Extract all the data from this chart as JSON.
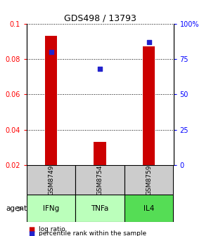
{
  "title": "GDS498 / 13793",
  "samples": [
    "GSM8749",
    "GSM8754",
    "GSM8759"
  ],
  "agents": [
    "IFNg",
    "TNFa",
    "IL4"
  ],
  "log_ratios": [
    0.093,
    0.033,
    0.087
  ],
  "percentile_ranks_pct": [
    80,
    68,
    87
  ],
  "ylim_left": [
    0.02,
    0.1
  ],
  "ylim_right": [
    0,
    100
  ],
  "yticks_left": [
    0.02,
    0.04,
    0.06,
    0.08,
    0.1
  ],
  "yticks_right": [
    0,
    25,
    50,
    75,
    100
  ],
  "bar_color": "#cc0000",
  "dot_color": "#2222cc",
  "agent_colors": [
    "#bbffbb",
    "#bbffbb",
    "#55dd55"
  ],
  "sample_bg": "#cccccc",
  "legend_red": "log ratio",
  "legend_blue": "percentile rank within the sample",
  "bar_width": 0.25
}
